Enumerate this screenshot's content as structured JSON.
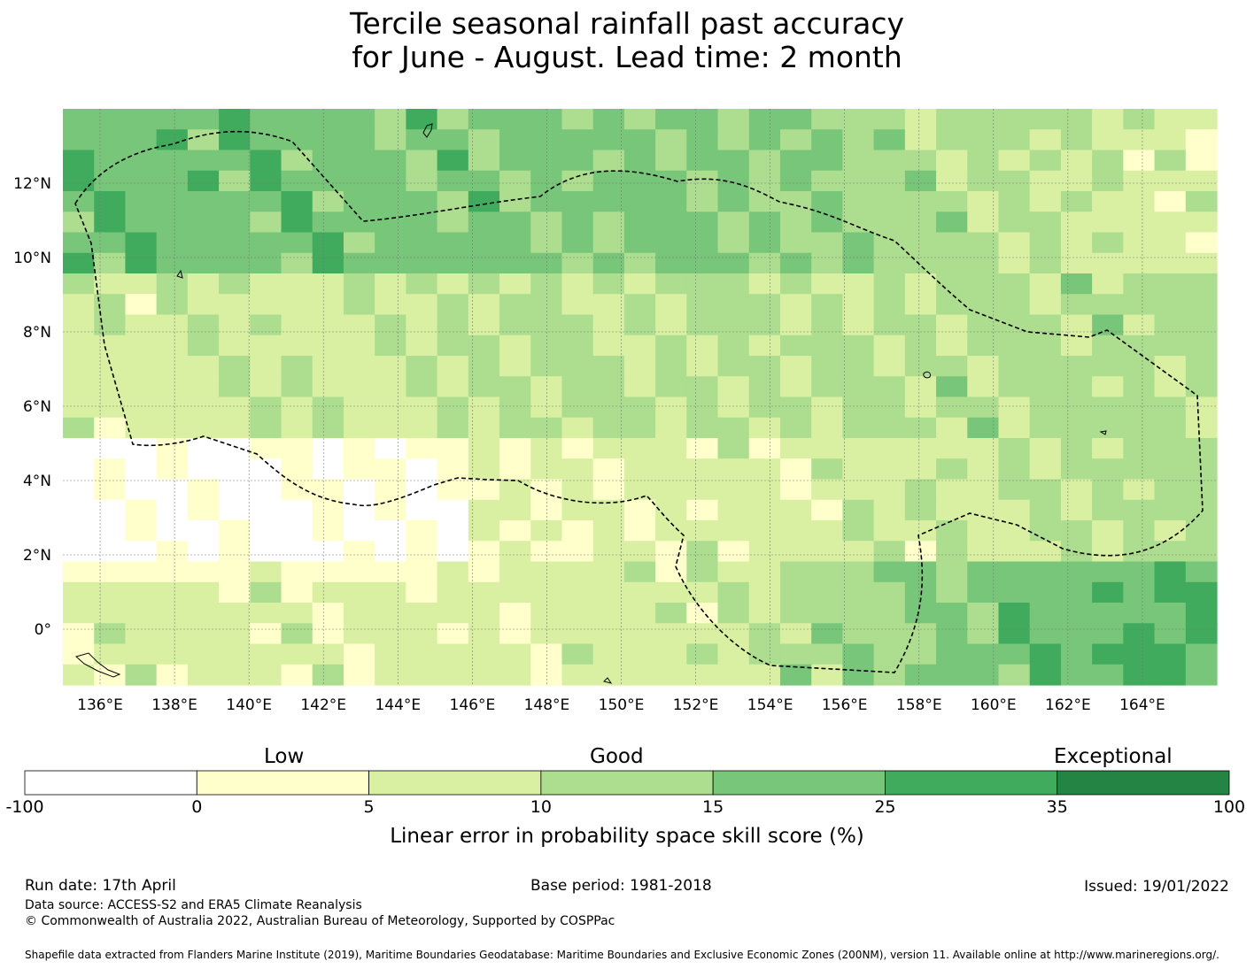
{
  "title": {
    "line1": "Tercile seasonal rainfall past accuracy",
    "line2": "for June - August. Lead time: 2 month"
  },
  "map": {
    "lon_labels": [
      "136°E",
      "138°E",
      "140°E",
      "142°E",
      "144°E",
      "146°E",
      "148°E",
      "150°E",
      "152°E",
      "154°E",
      "156°E",
      "158°E",
      "160°E",
      "162°E",
      "164°E"
    ],
    "lon_values": [
      136,
      138,
      140,
      142,
      144,
      146,
      148,
      150,
      152,
      154,
      156,
      158,
      160,
      162,
      164
    ],
    "lat_labels": [
      "12°N",
      "10°N",
      "8°N",
      "6°N",
      "4°N",
      "2°N",
      "0°"
    ],
    "lat_values": [
      12,
      10,
      8,
      6,
      4,
      2,
      0
    ],
    "lon_range": [
      135,
      166
    ],
    "lat_range": [
      -1.5,
      14
    ]
  },
  "colorbar": {
    "category_labels": [
      "Low",
      "Good",
      "Exceptional"
    ],
    "ticks": [
      "-100",
      "0",
      "5",
      "10",
      "15",
      "25",
      "35",
      "100"
    ],
    "colors": [
      "#ffffff",
      "#ffffcc",
      "#d9f0a3",
      "#addd8e",
      "#78c679",
      "#41ab5d",
      "#238443"
    ],
    "title": "Linear error in probability space skill score (%)"
  },
  "footer": {
    "run_date": "Run date: 17th April",
    "base_period": "Base period: 1981-2018",
    "issued": "Issued: 19/01/2022",
    "data_source": "Data source: ACCESS-S2 and ERA5 Climate Reanalysis",
    "copyright": "© Commonwealth of Australia 2022, Australian Bureau of Meteorology, Supported by COSPPac",
    "shapefile": "Shapefile data extracted from Flanders Marine Institute (2019), Maritime Boundaries Geodatabase: Maritime Boundaries and Exclusive Economic Zones (200NM), version 11. Available online at http://www.marineregions.org/."
  }
}
